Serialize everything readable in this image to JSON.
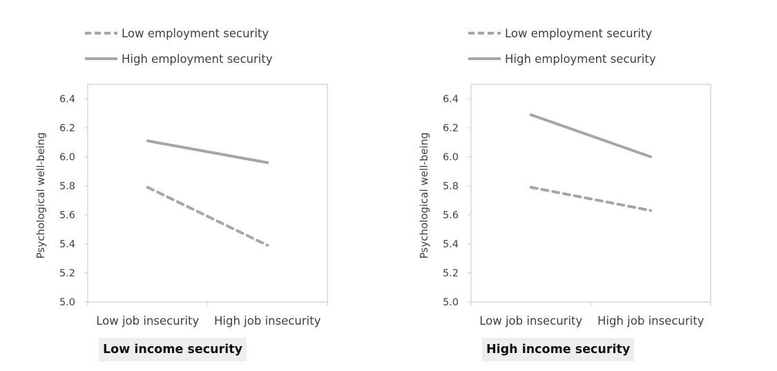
{
  "colors": {
    "line": "#a6a6a6",
    "axis": "#d9d9d9",
    "label_bg": "#eeeeee"
  },
  "chart_data": [
    {
      "type": "line",
      "panel_label": "Low income security",
      "ylabel": "Psychological well-being",
      "categories": [
        "Low job insecurity",
        "High job insecurity"
      ],
      "yticks": [
        "5.0",
        "5.2",
        "5.4",
        "5.6",
        "5.8",
        "6.0",
        "6.2",
        "6.4"
      ],
      "ylim": [
        5.0,
        6.5
      ],
      "grid": false,
      "legend_position": "top",
      "series": [
        {
          "name": "Low employment security",
          "style": "dashed",
          "values": [
            5.79,
            5.39
          ]
        },
        {
          "name": "High employment security",
          "style": "solid",
          "values": [
            6.11,
            5.96
          ]
        }
      ]
    },
    {
      "type": "line",
      "panel_label": "High income security",
      "ylabel": "Psychological well-being",
      "categories": [
        "Low job insecurity",
        "High job insecurity"
      ],
      "yticks": [
        "5.0",
        "5.2",
        "5.4",
        "5.6",
        "5.8",
        "6.0",
        "6.2",
        "6.4"
      ],
      "ylim": [
        5.0,
        6.5
      ],
      "grid": false,
      "legend_position": "top",
      "series": [
        {
          "name": "Low employment security",
          "style": "dashed",
          "values": [
            5.79,
            5.63
          ]
        },
        {
          "name": "High employment security",
          "style": "solid",
          "values": [
            6.29,
            6.0
          ]
        }
      ]
    }
  ]
}
